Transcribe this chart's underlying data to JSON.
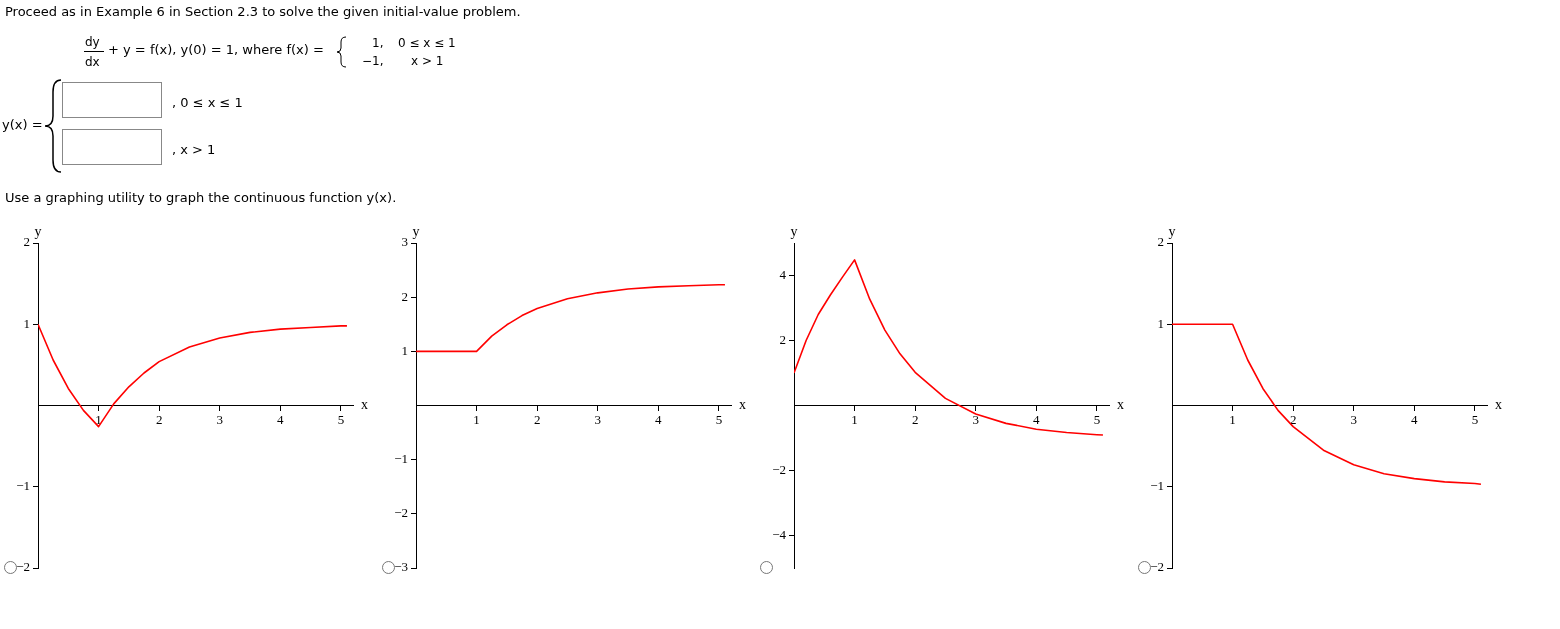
{
  "chart_data": [
    {
      "type": "other",
      "title": "Proceed as in Example 6 in Section 2.3 to solve the given initial-value problem.",
      "annotations": [
        "dy",
        "dx",
        "+ y = f(x), y(0) = 1, where f(x) =",
        "1,",
        "0 ≤ x ≤ 1",
        "−1,",
        "x > 1",
        "y(x) =",
        ", 0 ≤ x ≤ 1",
        ", x > 1",
        "Use a graphing utility to graph the continuous function y(x)."
      ]
    },
    {
      "type": "line",
      "xlabel": "x",
      "ylabel": "y",
      "xlim": [
        0,
        5.2
      ],
      "ylim": [
        -2,
        2
      ],
      "xticks": [
        1,
        2,
        3,
        4,
        5
      ],
      "yticks": [
        -2,
        -1,
        1,
        2
      ],
      "grid": false,
      "legend": false,
      "marker": "none",
      "series": [
        {
          "color": "#ff0000",
          "x": [
            0,
            0.25,
            0.5,
            0.75,
            1,
            1.25,
            1.5,
            1.75,
            2,
            2.5,
            3,
            3.5,
            4,
            4.5,
            5,
            5.1
          ],
          "values": [
            1,
            0.56,
            0.21,
            -0.06,
            -0.26,
            0.02,
            0.23,
            0.4,
            0.54,
            0.72,
            0.83,
            0.9,
            0.94,
            0.96,
            0.98,
            0.98
          ]
        }
      ]
    },
    {
      "type": "line",
      "xlabel": "x",
      "ylabel": "y",
      "xlim": [
        0,
        5.2
      ],
      "ylim": [
        -3,
        3
      ],
      "xticks": [
        1,
        2,
        3,
        4,
        5
      ],
      "yticks": [
        -3,
        -2,
        -1,
        1,
        2,
        3
      ],
      "grid": false,
      "legend": false,
      "marker": "none",
      "series": [
        {
          "color": "#ff0000",
          "x": [
            0,
            0.5,
            1,
            1.25,
            1.5,
            1.75,
            2,
            2.5,
            3,
            3.5,
            4,
            4.5,
            5,
            5.1
          ],
          "values": [
            1,
            1,
            1,
            1.28,
            1.49,
            1.66,
            1.79,
            1.97,
            2.08,
            2.15,
            2.19,
            2.21,
            2.23,
            2.23
          ]
        }
      ]
    },
    {
      "type": "line",
      "xlabel": "x",
      "ylabel": "y",
      "xlim": [
        0,
        5.2
      ],
      "ylim": [
        -5,
        5
      ],
      "xticks": [
        1,
        2,
        3,
        4,
        5
      ],
      "yticks": [
        -4,
        -2,
        2,
        4
      ],
      "grid": false,
      "legend": false,
      "marker": "none",
      "series": [
        {
          "color": "#ff0000",
          "x": [
            0,
            0.2,
            0.4,
            0.6,
            0.8,
            1,
            1.25,
            1.5,
            1.75,
            2,
            2.5,
            3,
            3.5,
            4,
            4.5,
            5,
            5.1
          ],
          "values": [
            1,
            2,
            2.8,
            3.4,
            3.95,
            4.48,
            3.27,
            2.32,
            1.59,
            1.02,
            0.22,
            -0.26,
            -0.55,
            -0.73,
            -0.83,
            -0.9,
            -0.91
          ]
        }
      ]
    },
    {
      "type": "line",
      "xlabel": "x",
      "ylabel": "y",
      "xlim": [
        0,
        5.2
      ],
      "ylim": [
        -2,
        2
      ],
      "xticks": [
        1,
        2,
        3,
        4,
        5
      ],
      "yticks": [
        -2,
        -1,
        1,
        2
      ],
      "grid": false,
      "legend": false,
      "marker": "none",
      "series": [
        {
          "color": "#ff0000",
          "x": [
            0,
            0.5,
            1,
            1.25,
            1.5,
            1.75,
            2,
            2.5,
            3,
            3.5,
            4,
            4.5,
            5,
            5.1
          ],
          "values": [
            1,
            1,
            1,
            0.56,
            0.21,
            -0.06,
            -0.26,
            -0.55,
            -0.73,
            -0.84,
            -0.9,
            -0.94,
            -0.96,
            -0.97
          ]
        }
      ]
    }
  ]
}
